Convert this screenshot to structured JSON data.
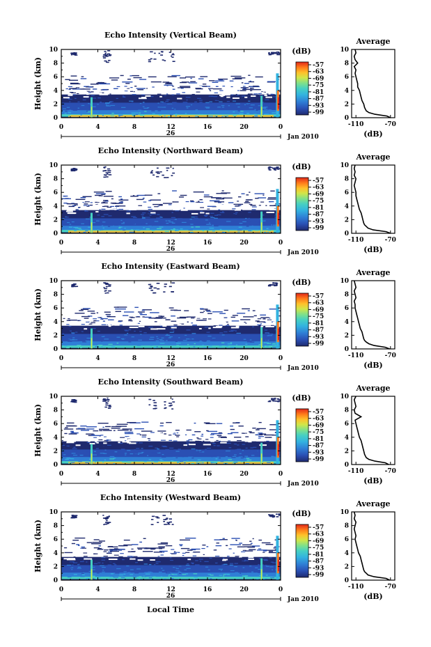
{
  "chart_data": [
    {
      "type": "heatmap",
      "title": "Echo Intensity (Vertical Beam)",
      "ylabel": "Height (km)",
      "y_ticks": [
        "0",
        "2",
        "4",
        "6",
        "8",
        "10"
      ],
      "x_ticks": [
        "0",
        "4",
        "8",
        "12",
        "16",
        "20",
        "0"
      ],
      "date_day": "26",
      "date_month": "Jan 2010",
      "colorbar_title": "(dB)",
      "colorbar_ticks": [
        "-57",
        "-63",
        "-69",
        "-75",
        "-81",
        "-87",
        "-93",
        "-99"
      ],
      "profile_title": "Average",
      "profile_xlabel": "(dB)",
      "profile_x_ticks": [
        "-110",
        "-70"
      ],
      "profile_y_ticks": [
        "0",
        "2",
        "4",
        "6",
        "8",
        "10"
      ],
      "profile": {
        "height_km": [
          0,
          0.25,
          0.5,
          0.75,
          1,
          1.25,
          1.5,
          2,
          2.5,
          3,
          3.5,
          4,
          4.5,
          5,
          5.5,
          6,
          6.5,
          7,
          7.5,
          8,
          8.5,
          9,
          9.5,
          10
        ],
        "db": [
          -70,
          -74,
          -88,
          -95,
          -98,
          -99,
          -100,
          -101,
          -103,
          -104,
          -105,
          -106,
          -108,
          -108,
          -109,
          -110,
          -111,
          -110,
          -112,
          -108,
          -111,
          -112,
          -110,
          -111
        ]
      }
    },
    {
      "type": "heatmap",
      "title": "Echo Intensity (Northward Beam)",
      "ylabel": "Height (km)",
      "y_ticks": [
        "0",
        "2",
        "4",
        "6",
        "8",
        "10"
      ],
      "x_ticks": [
        "0",
        "4",
        "8",
        "12",
        "16",
        "20",
        "0"
      ],
      "date_day": "26",
      "date_month": "Jan 2010",
      "colorbar_title": "(dB)",
      "colorbar_ticks": [
        "-57",
        "-63",
        "-69",
        "-75",
        "-81",
        "-87",
        "-93",
        "-99"
      ],
      "profile_title": "Average",
      "profile_xlabel": "(dB)",
      "profile_x_ticks": [
        "-110",
        "-70"
      ],
      "profile_y_ticks": [
        "0",
        "2",
        "4",
        "6",
        "8",
        "10"
      ],
      "profile": {
        "height_km": [
          0,
          0.25,
          0.5,
          0.75,
          1,
          1.25,
          1.5,
          2,
          2.5,
          3,
          3.5,
          4,
          4.5,
          5,
          5.5,
          6,
          6.5,
          7,
          7.5,
          8,
          8.5,
          9,
          9.5,
          10
        ],
        "db": [
          -70,
          -75,
          -90,
          -96,
          -98,
          -100,
          -101,
          -102,
          -103,
          -104,
          -106,
          -107,
          -108,
          -109,
          -110,
          -110,
          -111,
          -112,
          -111,
          -110,
          -112,
          -111,
          -112,
          -111
        ]
      }
    },
    {
      "type": "heatmap",
      "title": "Echo Intensity (Eastward Beam)",
      "ylabel": "Height (km)",
      "y_ticks": [
        "0",
        "2",
        "4",
        "6",
        "8",
        "10"
      ],
      "x_ticks": [
        "0",
        "4",
        "8",
        "12",
        "16",
        "20",
        "0"
      ],
      "date_day": "26",
      "date_month": "Jan 2010",
      "colorbar_title": "(dB)",
      "colorbar_ticks": [
        "-57",
        "-63",
        "-69",
        "-75",
        "-81",
        "-87",
        "-93",
        "-99"
      ],
      "profile_title": "Average",
      "profile_xlabel": "(dB)",
      "profile_x_ticks": [
        "-110",
        "-70"
      ],
      "profile_y_ticks": [
        "0",
        "2",
        "4",
        "6",
        "8",
        "10"
      ],
      "profile": {
        "height_km": [
          0,
          0.25,
          0.5,
          0.75,
          1,
          1.25,
          1.5,
          2,
          2.5,
          3,
          3.5,
          4,
          4.5,
          5,
          5.5,
          6,
          6.5,
          7,
          7.5,
          8,
          8.5,
          9,
          9.5,
          10
        ],
        "db": [
          -71,
          -76,
          -89,
          -95,
          -98,
          -100,
          -101,
          -102,
          -103,
          -105,
          -106,
          -107,
          -108,
          -109,
          -110,
          -111,
          -111,
          -112,
          -110,
          -111,
          -112,
          -110,
          -111,
          -112
        ]
      }
    },
    {
      "type": "heatmap",
      "title": "Echo Intensity (Southward Beam)",
      "ylabel": "Height (km)",
      "y_ticks": [
        "0",
        "2",
        "4",
        "6",
        "8",
        "10"
      ],
      "x_ticks": [
        "0",
        "4",
        "8",
        "12",
        "16",
        "20",
        "0"
      ],
      "date_day": "26",
      "date_month": "Jan 2010",
      "colorbar_title": "(dB)",
      "colorbar_ticks": [
        "-57",
        "-63",
        "-69",
        "-75",
        "-81",
        "-87",
        "-93",
        "-99"
      ],
      "profile_title": "Average",
      "profile_xlabel": "(dB)",
      "profile_x_ticks": [
        "-110",
        "-70"
      ],
      "profile_y_ticks": [
        "0",
        "2",
        "4",
        "6",
        "8",
        "10"
      ],
      "profile": {
        "height_km": [
          0,
          0.25,
          0.5,
          0.75,
          1,
          1.25,
          1.5,
          2,
          2.5,
          3,
          3.5,
          4,
          4.5,
          5,
          5.5,
          6,
          6.5,
          7,
          7.5,
          8,
          8.5,
          9,
          9.5,
          10
        ],
        "db": [
          -72,
          -76,
          -88,
          -95,
          -98,
          -99,
          -100,
          -101,
          -102,
          -103,
          -104,
          -106,
          -107,
          -108,
          -109,
          -110,
          -111,
          -104,
          -111,
          -112,
          -110,
          -111,
          -112,
          -110
        ]
      }
    },
    {
      "type": "heatmap",
      "title": "Echo Intensity (Westward Beam)",
      "ylabel": "Height (km)",
      "y_ticks": [
        "0",
        "2",
        "4",
        "6",
        "8",
        "10"
      ],
      "x_ticks": [
        "0",
        "4",
        "8",
        "12",
        "16",
        "20",
        "0"
      ],
      "date_day": "26",
      "date_month": "Jan 2010",
      "colorbar_title": "(dB)",
      "colorbar_ticks": [
        "-57",
        "-63",
        "-69",
        "-75",
        "-81",
        "-87",
        "-93",
        "-99"
      ],
      "profile_title": "Average",
      "profile_xlabel": "(dB)",
      "profile_x_ticks": [
        "-110",
        "-70"
      ],
      "profile_y_ticks": [
        "0",
        "2",
        "4",
        "6",
        "8",
        "10"
      ],
      "profile": {
        "height_km": [
          0,
          0.25,
          0.5,
          0.75,
          1,
          1.25,
          1.5,
          2,
          2.5,
          3,
          3.5,
          4,
          4.5,
          5,
          5.5,
          6,
          6.5,
          7,
          7.5,
          8,
          8.5,
          9,
          9.5,
          10
        ],
        "db": [
          -71,
          -75,
          -89,
          -96,
          -98,
          -100,
          -101,
          -102,
          -103,
          -104,
          -105,
          -107,
          -108,
          -109,
          -110,
          -111,
          -110,
          -111,
          -112,
          -111,
          -110,
          -112,
          -111,
          -112
        ]
      }
    }
  ],
  "xlabel": "Local Time",
  "colors": {
    "scale": [
      "#1f2a6e",
      "#2a4fb3",
      "#2f7fd6",
      "#33b3e0",
      "#46d0c2",
      "#7fe08a",
      "#cfe64a",
      "#ffc02a",
      "#ff7a1a",
      "#e0281a"
    ]
  }
}
